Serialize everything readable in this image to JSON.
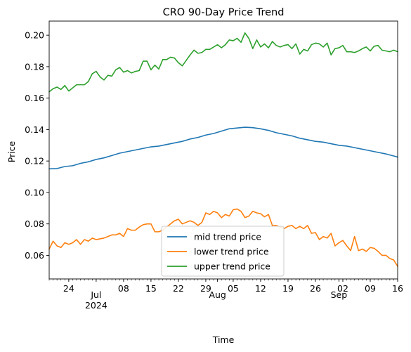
{
  "chart_data": {
    "type": "line",
    "title": "CRO 90-Day Price Trend",
    "xlabel": "Time",
    "ylabel": "Price",
    "xlim": [
      "2024-06-19",
      "2024-09-16"
    ],
    "ylim": [
      0.045,
      0.209
    ],
    "y_ticks": [
      "0.06",
      "0.08",
      "0.10",
      "0.12",
      "0.14",
      "0.16",
      "0.18",
      "0.20"
    ],
    "x_day_ticks": [
      {
        "date": "2024-06-24",
        "label": "24"
      },
      {
        "date": "2024-07-08",
        "label": "08"
      },
      {
        "date": "2024-07-15",
        "label": "15"
      },
      {
        "date": "2024-07-22",
        "label": "22"
      },
      {
        "date": "2024-07-29",
        "label": "29"
      },
      {
        "date": "2024-08-05",
        "label": "05"
      },
      {
        "date": "2024-08-12",
        "label": "12"
      },
      {
        "date": "2024-08-19",
        "label": "19"
      },
      {
        "date": "2024-08-26",
        "label": "26"
      },
      {
        "date": "2024-09-02",
        "label": "02"
      },
      {
        "date": "2024-09-09",
        "label": "09"
      },
      {
        "date": "2024-09-16",
        "label": "16"
      }
    ],
    "x_month_ticks": [
      {
        "date": "2024-07-01",
        "label": "Jul",
        "year": "2024"
      },
      {
        "date": "2024-08-01",
        "label": "Aug",
        "year": ""
      },
      {
        "date": "2024-09-01",
        "label": "Sep",
        "year": ""
      }
    ],
    "grid": false,
    "legend_position": "lower-center",
    "series": [
      {
        "name": "mid trend price",
        "color": "#1f77b4",
        "points": [
          [
            "2024-06-19",
            0.115
          ],
          [
            "2024-06-21",
            0.1152
          ],
          [
            "2024-06-23",
            0.1165
          ],
          [
            "2024-06-25",
            0.117
          ],
          [
            "2024-06-27",
            0.1185
          ],
          [
            "2024-06-29",
            0.1195
          ],
          [
            "2024-07-01",
            0.121
          ],
          [
            "2024-07-03",
            0.122
          ],
          [
            "2024-07-05",
            0.1235
          ],
          [
            "2024-07-07",
            0.125
          ],
          [
            "2024-07-09",
            0.126
          ],
          [
            "2024-07-11",
            0.127
          ],
          [
            "2024-07-13",
            0.128
          ],
          [
            "2024-07-15",
            0.129
          ],
          [
            "2024-07-17",
            0.1295
          ],
          [
            "2024-07-19",
            0.1305
          ],
          [
            "2024-07-21",
            0.1315
          ],
          [
            "2024-07-23",
            0.1325
          ],
          [
            "2024-07-25",
            0.134
          ],
          [
            "2024-07-27",
            0.135
          ],
          [
            "2024-07-29",
            0.1365
          ],
          [
            "2024-07-31",
            0.1375
          ],
          [
            "2024-08-02",
            0.139
          ],
          [
            "2024-08-04",
            0.1405
          ],
          [
            "2024-08-06",
            0.141
          ],
          [
            "2024-08-08",
            0.1415
          ],
          [
            "2024-08-10",
            0.1412
          ],
          [
            "2024-08-12",
            0.1405
          ],
          [
            "2024-08-14",
            0.1395
          ],
          [
            "2024-08-16",
            0.138
          ],
          [
            "2024-08-18",
            0.137
          ],
          [
            "2024-08-20",
            0.136
          ],
          [
            "2024-08-22",
            0.1345
          ],
          [
            "2024-08-24",
            0.1335
          ],
          [
            "2024-08-26",
            0.1325
          ],
          [
            "2024-08-28",
            0.132
          ],
          [
            "2024-08-30",
            0.131
          ],
          [
            "2024-09-01",
            0.13
          ],
          [
            "2024-09-03",
            0.1295
          ],
          [
            "2024-09-05",
            0.1285
          ],
          [
            "2024-09-07",
            0.1275
          ],
          [
            "2024-09-09",
            0.1265
          ],
          [
            "2024-09-11",
            0.1255
          ],
          [
            "2024-09-13",
            0.1245
          ],
          [
            "2024-09-15",
            0.1232
          ],
          [
            "2024-09-16",
            0.1225
          ]
        ]
      },
      {
        "name": "lower trend price",
        "color": "#ff7f0e",
        "points": [
          [
            "2024-06-19",
            0.064
          ],
          [
            "2024-06-20",
            0.069
          ],
          [
            "2024-06-21",
            0.066
          ],
          [
            "2024-06-22",
            0.065
          ],
          [
            "2024-06-23",
            0.068
          ],
          [
            "2024-06-24",
            0.067
          ],
          [
            "2024-06-25",
            0.068
          ],
          [
            "2024-06-26",
            0.07
          ],
          [
            "2024-06-27",
            0.067
          ],
          [
            "2024-06-28",
            0.07
          ],
          [
            "2024-06-29",
            0.069
          ],
          [
            "2024-06-30",
            0.071
          ],
          [
            "2024-07-01",
            0.07
          ],
          [
            "2024-07-02",
            0.0705
          ],
          [
            "2024-07-03",
            0.071
          ],
          [
            "2024-07-04",
            0.072
          ],
          [
            "2024-07-05",
            0.073
          ],
          [
            "2024-07-06",
            0.073
          ],
          [
            "2024-07-07",
            0.074
          ],
          [
            "2024-07-08",
            0.072
          ],
          [
            "2024-07-09",
            0.077
          ],
          [
            "2024-07-10",
            0.076
          ],
          [
            "2024-07-11",
            0.076
          ],
          [
            "2024-07-12",
            0.078
          ],
          [
            "2024-07-13",
            0.0795
          ],
          [
            "2024-07-14",
            0.08
          ],
          [
            "2024-07-15",
            0.08
          ],
          [
            "2024-07-16",
            0.075
          ],
          [
            "2024-07-17",
            0.075
          ],
          [
            "2024-07-18",
            0.076
          ],
          [
            "2024-07-19",
            0.078
          ],
          [
            "2024-07-20",
            0.08
          ],
          [
            "2024-07-21",
            0.082
          ],
          [
            "2024-07-22",
            0.083
          ],
          [
            "2024-07-23",
            0.08
          ],
          [
            "2024-07-24",
            0.081
          ],
          [
            "2024-07-25",
            0.082
          ],
          [
            "2024-07-26",
            0.081
          ],
          [
            "2024-07-27",
            0.079
          ],
          [
            "2024-07-28",
            0.081
          ],
          [
            "2024-07-29",
            0.087
          ],
          [
            "2024-07-30",
            0.086
          ],
          [
            "2024-07-31",
            0.088
          ],
          [
            "2024-08-01",
            0.087
          ],
          [
            "2024-08-02",
            0.084
          ],
          [
            "2024-08-03",
            0.086
          ],
          [
            "2024-08-04",
            0.085
          ],
          [
            "2024-08-05",
            0.089
          ],
          [
            "2024-08-06",
            0.0895
          ],
          [
            "2024-08-07",
            0.088
          ],
          [
            "2024-08-08",
            0.084
          ],
          [
            "2024-08-09",
            0.085
          ],
          [
            "2024-08-10",
            0.088
          ],
          [
            "2024-08-11",
            0.087
          ],
          [
            "2024-08-12",
            0.0865
          ],
          [
            "2024-08-13",
            0.0845
          ],
          [
            "2024-08-14",
            0.086
          ],
          [
            "2024-08-15",
            0.079
          ],
          [
            "2024-08-16",
            0.079
          ],
          [
            "2024-08-17",
            0.078
          ],
          [
            "2024-08-18",
            0.077
          ],
          [
            "2024-08-19",
            0.0785
          ],
          [
            "2024-08-20",
            0.079
          ],
          [
            "2024-08-21",
            0.077
          ],
          [
            "2024-08-22",
            0.0785
          ],
          [
            "2024-08-23",
            0.077
          ],
          [
            "2024-08-24",
            0.079
          ],
          [
            "2024-08-25",
            0.074
          ],
          [
            "2024-08-26",
            0.0745
          ],
          [
            "2024-08-27",
            0.07
          ],
          [
            "2024-08-28",
            0.072
          ],
          [
            "2024-08-29",
            0.071
          ],
          [
            "2024-08-30",
            0.074
          ],
          [
            "2024-08-31",
            0.066
          ],
          [
            "2024-09-01",
            0.068
          ],
          [
            "2024-09-02",
            0.0695
          ],
          [
            "2024-09-03",
            0.066
          ],
          [
            "2024-09-04",
            0.063
          ],
          [
            "2024-09-05",
            0.072
          ],
          [
            "2024-09-06",
            0.063
          ],
          [
            "2024-09-07",
            0.064
          ],
          [
            "2024-09-08",
            0.0625
          ],
          [
            "2024-09-09",
            0.065
          ],
          [
            "2024-09-10",
            0.0645
          ],
          [
            "2024-09-11",
            0.0625
          ],
          [
            "2024-09-12",
            0.06
          ],
          [
            "2024-09-13",
            0.06
          ],
          [
            "2024-09-14",
            0.058
          ],
          [
            "2024-09-15",
            0.057
          ],
          [
            "2024-09-16",
            0.053
          ]
        ]
      },
      {
        "name": "upper trend price",
        "color": "#2ca02c",
        "points": [
          [
            "2024-06-19",
            0.164
          ],
          [
            "2024-06-20",
            0.166
          ],
          [
            "2024-06-21",
            0.167
          ],
          [
            "2024-06-22",
            0.1655
          ],
          [
            "2024-06-23",
            0.168
          ],
          [
            "2024-06-24",
            0.1645
          ],
          [
            "2024-06-25",
            0.1665
          ],
          [
            "2024-06-26",
            0.1685
          ],
          [
            "2024-06-27",
            0.1685
          ],
          [
            "2024-06-28",
            0.1685
          ],
          [
            "2024-06-29",
            0.1705
          ],
          [
            "2024-06-30",
            0.1755
          ],
          [
            "2024-07-01",
            0.177
          ],
          [
            "2024-07-02",
            0.1735
          ],
          [
            "2024-07-03",
            0.1715
          ],
          [
            "2024-07-04",
            0.1745
          ],
          [
            "2024-07-05",
            0.174
          ],
          [
            "2024-07-06",
            0.178
          ],
          [
            "2024-07-07",
            0.1795
          ],
          [
            "2024-07-08",
            0.1765
          ],
          [
            "2024-07-09",
            0.1775
          ],
          [
            "2024-07-10",
            0.176
          ],
          [
            "2024-07-11",
            0.177
          ],
          [
            "2024-07-12",
            0.1775
          ],
          [
            "2024-07-13",
            0.1835
          ],
          [
            "2024-07-14",
            0.1835
          ],
          [
            "2024-07-15",
            0.178
          ],
          [
            "2024-07-16",
            0.181
          ],
          [
            "2024-07-17",
            0.1785
          ],
          [
            "2024-07-18",
            0.1845
          ],
          [
            "2024-07-19",
            0.1845
          ],
          [
            "2024-07-20",
            0.186
          ],
          [
            "2024-07-21",
            0.1855
          ],
          [
            "2024-07-22",
            0.1825
          ],
          [
            "2024-07-23",
            0.1805
          ],
          [
            "2024-07-24",
            0.184
          ],
          [
            "2024-07-25",
            0.1875
          ],
          [
            "2024-07-26",
            0.1905
          ],
          [
            "2024-07-27",
            0.1885
          ],
          [
            "2024-07-28",
            0.189
          ],
          [
            "2024-07-29",
            0.191
          ],
          [
            "2024-07-30",
            0.191
          ],
          [
            "2024-07-31",
            0.1925
          ],
          [
            "2024-08-01",
            0.194
          ],
          [
            "2024-08-02",
            0.192
          ],
          [
            "2024-08-03",
            0.194
          ],
          [
            "2024-08-04",
            0.197
          ],
          [
            "2024-08-05",
            0.1965
          ],
          [
            "2024-08-06",
            0.198
          ],
          [
            "2024-08-07",
            0.1955
          ],
          [
            "2024-08-08",
            0.2015
          ],
          [
            "2024-08-09",
            0.198
          ],
          [
            "2024-08-10",
            0.1915
          ],
          [
            "2024-08-11",
            0.197
          ],
          [
            "2024-08-12",
            0.1925
          ],
          [
            "2024-08-13",
            0.1945
          ],
          [
            "2024-08-14",
            0.192
          ],
          [
            "2024-08-15",
            0.196
          ],
          [
            "2024-08-16",
            0.1935
          ],
          [
            "2024-08-17",
            0.1925
          ],
          [
            "2024-08-18",
            0.1935
          ],
          [
            "2024-08-19",
            0.194
          ],
          [
            "2024-08-20",
            0.1915
          ],
          [
            "2024-08-21",
            0.1945
          ],
          [
            "2024-08-22",
            0.188
          ],
          [
            "2024-08-23",
            0.191
          ],
          [
            "2024-08-24",
            0.19
          ],
          [
            "2024-08-25",
            0.194
          ],
          [
            "2024-08-26",
            0.195
          ],
          [
            "2024-08-27",
            0.1945
          ],
          [
            "2024-08-28",
            0.1925
          ],
          [
            "2024-08-29",
            0.195
          ],
          [
            "2024-08-30",
            0.1875
          ],
          [
            "2024-08-31",
            0.1915
          ],
          [
            "2024-09-01",
            0.192
          ],
          [
            "2024-09-02",
            0.1935
          ],
          [
            "2024-09-03",
            0.1895
          ],
          [
            "2024-09-04",
            0.1895
          ],
          [
            "2024-09-05",
            0.189
          ],
          [
            "2024-09-06",
            0.19
          ],
          [
            "2024-09-07",
            0.1915
          ],
          [
            "2024-09-08",
            0.1925
          ],
          [
            "2024-09-09",
            0.19
          ],
          [
            "2024-09-10",
            0.193
          ],
          [
            "2024-09-11",
            0.1935
          ],
          [
            "2024-09-12",
            0.1905
          ],
          [
            "2024-09-13",
            0.19
          ],
          [
            "2024-09-14",
            0.1895
          ],
          [
            "2024-09-15",
            0.1905
          ],
          [
            "2024-09-16",
            0.1895
          ]
        ]
      }
    ]
  }
}
